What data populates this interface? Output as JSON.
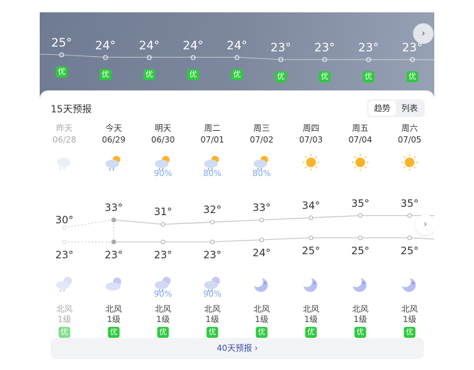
{
  "hourly": {
    "temps": [
      "25°",
      "24°",
      "24°",
      "24°",
      "24°",
      "23°",
      "23°",
      "23°",
      "23°"
    ],
    "values": [
      25,
      24,
      24,
      24,
      24,
      23,
      23,
      23,
      23
    ],
    "aqi": [
      "优",
      "优",
      "优",
      "优",
      "优",
      "优",
      "优",
      "优",
      "优"
    ],
    "next_icon": "chevron-right-icon"
  },
  "forecast": {
    "title": "15天预报",
    "toggle": {
      "trend": "趋势",
      "list": "列表",
      "selected": "趋势"
    },
    "days": [
      {
        "day": "昨天",
        "date": "06/28",
        "day_icon": "cloud-rain",
        "day_pct": "",
        "high": "30°",
        "hv": 30,
        "low": "23°",
        "lv": 23,
        "night_icon": "cloud-moon-rain",
        "night_pct": "",
        "wind": "北风",
        "level": "1级",
        "aqi": "优",
        "past": true
      },
      {
        "day": "今天",
        "date": "06/29",
        "day_icon": "sun-cloud-rain",
        "day_pct": "",
        "high": "33°",
        "hv": 33,
        "low": "23°",
        "lv": 23,
        "night_icon": "cloud-moon",
        "night_pct": "",
        "wind": "北风",
        "level": "1级",
        "aqi": "优"
      },
      {
        "day": "明天",
        "date": "06/30",
        "day_icon": "sun-cloud-rain",
        "day_pct": "90%",
        "high": "31°",
        "hv": 31,
        "low": "23°",
        "lv": 23,
        "night_icon": "cloud-moon-rain",
        "night_pct": "90%",
        "wind": "北风",
        "level": "1级",
        "aqi": "优"
      },
      {
        "day": "周二",
        "date": "07/01",
        "day_icon": "sun-cloud-rain",
        "day_pct": "80%",
        "high": "32°",
        "hv": 32,
        "low": "23°",
        "lv": 23,
        "night_icon": "cloud-moon-rain",
        "night_pct": "90%",
        "wind": "北风",
        "level": "1级",
        "aqi": "优"
      },
      {
        "day": "周三",
        "date": "07/02",
        "day_icon": "sun-cloud-rain",
        "day_pct": "80%",
        "high": "33°",
        "hv": 33,
        "low": "24°",
        "lv": 24,
        "night_icon": "moon",
        "night_pct": "",
        "wind": "北风",
        "level": "1级",
        "aqi": "优"
      },
      {
        "day": "周四",
        "date": "07/03",
        "day_icon": "sun",
        "day_pct": "",
        "high": "34°",
        "hv": 34,
        "low": "25°",
        "lv": 25,
        "night_icon": "moon",
        "night_pct": "",
        "wind": "北风",
        "level": "1级",
        "aqi": "优"
      },
      {
        "day": "周五",
        "date": "07/04",
        "day_icon": "sun",
        "day_pct": "",
        "high": "35°",
        "hv": 35,
        "low": "25°",
        "lv": 25,
        "night_icon": "moon",
        "night_pct": "",
        "wind": "北风",
        "level": "1级",
        "aqi": "优"
      },
      {
        "day": "周六",
        "date": "07/05",
        "day_icon": "sun",
        "day_pct": "",
        "high": "35°",
        "hv": 35,
        "low": "25°",
        "lv": 25,
        "night_icon": "moon",
        "night_pct": "",
        "wind": "北风",
        "level": "1级",
        "aqi": "优"
      }
    ],
    "more": "40天预报 ›"
  },
  "colors": {
    "aqi_good": "#2fc93f",
    "precip": "#7ea6ee",
    "link": "#3d4fa8"
  }
}
